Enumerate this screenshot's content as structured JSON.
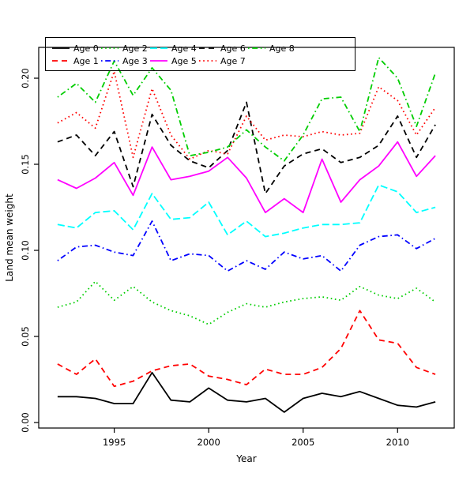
{
  "chart_data": {
    "type": "line",
    "title": "",
    "xlabel": "Year",
    "ylabel": "Land mean weight",
    "grid": false,
    "legend_position": "top-left",
    "xlim": [
      1991,
      2013
    ],
    "ylim": [
      -0.0032,
      0.2179
    ],
    "xticks": {
      "values": [
        1995,
        2000,
        2005,
        2010
      ],
      "labels": [
        "1995",
        "2000",
        "2005",
        "2010"
      ]
    },
    "yticks": {
      "values": [
        0.0,
        0.05,
        0.1,
        0.15,
        0.2
      ],
      "labels": [
        "0.00",
        "0.05",
        "0.10",
        "0.15",
        "0.20"
      ]
    },
    "x": [
      1992,
      1993,
      1994,
      1995,
      1996,
      1997,
      1998,
      1999,
      2000,
      2001,
      2002,
      2003,
      2004,
      2005,
      2006,
      2007,
      2008,
      2009,
      2010,
      2011,
      2012
    ],
    "series": [
      {
        "name": "Age 0",
        "color": "#000000",
        "linestyle": "solid",
        "values": [
          0.015,
          0.015,
          0.014,
          0.011,
          0.011,
          0.029,
          0.013,
          0.012,
          0.02,
          0.013,
          0.012,
          0.014,
          0.006,
          0.014,
          0.017,
          0.015,
          0.018,
          0.014,
          0.01,
          0.009,
          0.012
        ]
      },
      {
        "name": "Age 1",
        "color": "#FF0000",
        "linestyle": "dashed",
        "values": [
          0.034,
          0.028,
          0.037,
          0.021,
          0.024,
          0.03,
          0.033,
          0.034,
          0.027,
          0.025,
          0.022,
          0.031,
          0.028,
          0.028,
          0.032,
          0.043,
          0.065,
          0.048,
          0.046,
          0.032,
          0.028
        ]
      },
      {
        "name": "Age 2",
        "color": "#00CD00",
        "linestyle": "dotted",
        "values": [
          0.067,
          0.07,
          0.082,
          0.071,
          0.079,
          0.07,
          0.065,
          0.062,
          0.057,
          0.064,
          0.069,
          0.067,
          0.07,
          0.072,
          0.073,
          0.071,
          0.079,
          0.074,
          0.072,
          0.078,
          0.07
        ]
      },
      {
        "name": "Age 3",
        "color": "#0000FF",
        "linestyle": "dotdash",
        "values": [
          0.094,
          0.102,
          0.103,
          0.099,
          0.097,
          0.117,
          0.094,
          0.098,
          0.097,
          0.088,
          0.094,
          0.089,
          0.099,
          0.095,
          0.097,
          0.088,
          0.103,
          0.108,
          0.109,
          0.101,
          0.107
        ]
      },
      {
        "name": "Age 4",
        "color": "#00FFFF",
        "linestyle": "longdash",
        "values": [
          0.115,
          0.113,
          0.122,
          0.123,
          0.112,
          0.133,
          0.118,
          0.119,
          0.128,
          0.109,
          0.117,
          0.108,
          0.11,
          0.113,
          0.115,
          0.115,
          0.116,
          0.138,
          0.134,
          0.122,
          0.125
        ]
      },
      {
        "name": "Age 5",
        "color": "#FF00FF",
        "linestyle": "solid",
        "values": [
          0.141,
          0.136,
          0.142,
          0.151,
          0.132,
          0.16,
          0.141,
          0.143,
          0.146,
          0.154,
          0.142,
          0.122,
          0.13,
          0.122,
          0.153,
          0.128,
          0.141,
          0.149,
          0.163,
          0.143,
          0.155
        ]
      },
      {
        "name": "Age 6",
        "color": "#000000",
        "linestyle": "dashed",
        "values": [
          0.163,
          0.167,
          0.155,
          0.169,
          0.137,
          0.179,
          0.161,
          0.152,
          0.148,
          0.158,
          0.186,
          0.133,
          0.149,
          0.156,
          0.159,
          0.151,
          0.154,
          0.161,
          0.178,
          0.154,
          0.173
        ]
      },
      {
        "name": "Age 7",
        "color": "#FF0000",
        "linestyle": "dotted",
        "values": [
          0.174,
          0.18,
          0.171,
          0.204,
          0.154,
          0.194,
          0.167,
          0.153,
          0.158,
          0.156,
          0.178,
          0.164,
          0.167,
          0.166,
          0.169,
          0.167,
          0.168,
          0.195,
          0.187,
          0.167,
          0.183
        ]
      },
      {
        "name": "Age 8",
        "color": "#00CD00",
        "linestyle": "dotdash",
        "values": [
          0.189,
          0.197,
          0.186,
          0.21,
          0.19,
          0.206,
          0.193,
          0.155,
          0.157,
          0.16,
          0.17,
          0.16,
          0.152,
          0.167,
          0.188,
          0.189,
          0.169,
          0.212,
          0.2,
          0.172,
          0.203
        ]
      }
    ],
    "legend": [
      "Age 0",
      "Age 1",
      "Age 2",
      "Age 3",
      "Age 4",
      "Age 5",
      "Age 6",
      "Age 7",
      "Age 8"
    ]
  },
  "layout_colors": {
    "axis": "#000000",
    "background": "#ffffff"
  }
}
